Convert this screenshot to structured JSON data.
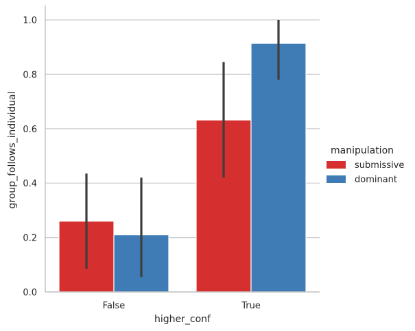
{
  "chart_data": {
    "type": "bar",
    "title": "",
    "xlabel": "higher_conf",
    "ylabel": "group_follows_individual",
    "categories": [
      "False",
      "True"
    ],
    "ylim": [
      0,
      1.05
    ],
    "yticks": [
      "0.0",
      "0.2",
      "0.4",
      "0.6",
      "0.8",
      "1.0"
    ],
    "grid": "horizontal",
    "legend": {
      "title": "manipulation",
      "placement": "right-outside"
    },
    "series": [
      {
        "name": "submissive",
        "color": "#d62f30",
        "values": [
          0.26,
          0.632
        ],
        "ci_low": [
          0.085,
          0.42
        ],
        "ci_high": [
          0.435,
          0.845
        ]
      },
      {
        "name": "dominant",
        "color": "#3f7cb5",
        "values": [
          0.21,
          0.914
        ],
        "ci_low": [
          0.055,
          0.78
        ],
        "ci_high": [
          0.42,
          1.0
        ]
      }
    ]
  }
}
